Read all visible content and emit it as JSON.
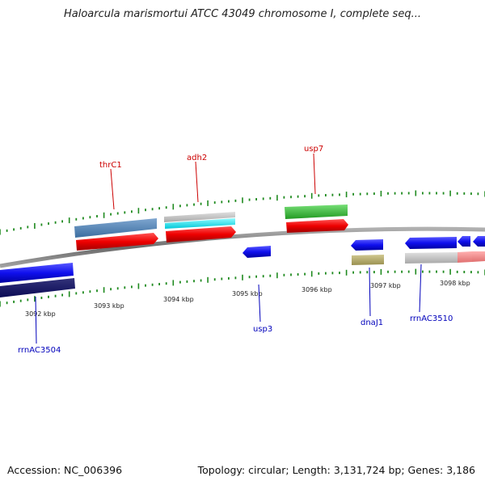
{
  "title": "Haloarcula marismortui ATCC 43049 chromosome I, complete seq...",
  "footer": {
    "accession": "Accession: NC_006396",
    "summary": "Topology: circular; Length: 3,131,724 bp; Genes: 3,186"
  },
  "colors": {
    "backbone": "#8a8a8a",
    "tick": "#1f8a1f",
    "top_label": "#cc0000",
    "bottom_label": "#0000bb"
  },
  "ticks": [
    "3092 kbp",
    "3093 kbp",
    "3094 kbp",
    "3095 kbp",
    "3096 kbp",
    "3097 kbp",
    "3098 kbp"
  ],
  "genes_top": [
    {
      "name": "thrC1"
    },
    {
      "name": "adh2"
    },
    {
      "name": "usp7"
    }
  ],
  "genes_bottom": [
    {
      "name": "rrnAC3504"
    },
    {
      "name": "usp3"
    },
    {
      "name": "dnaJ1"
    },
    {
      "name": "rrnAC3510"
    }
  ]
}
